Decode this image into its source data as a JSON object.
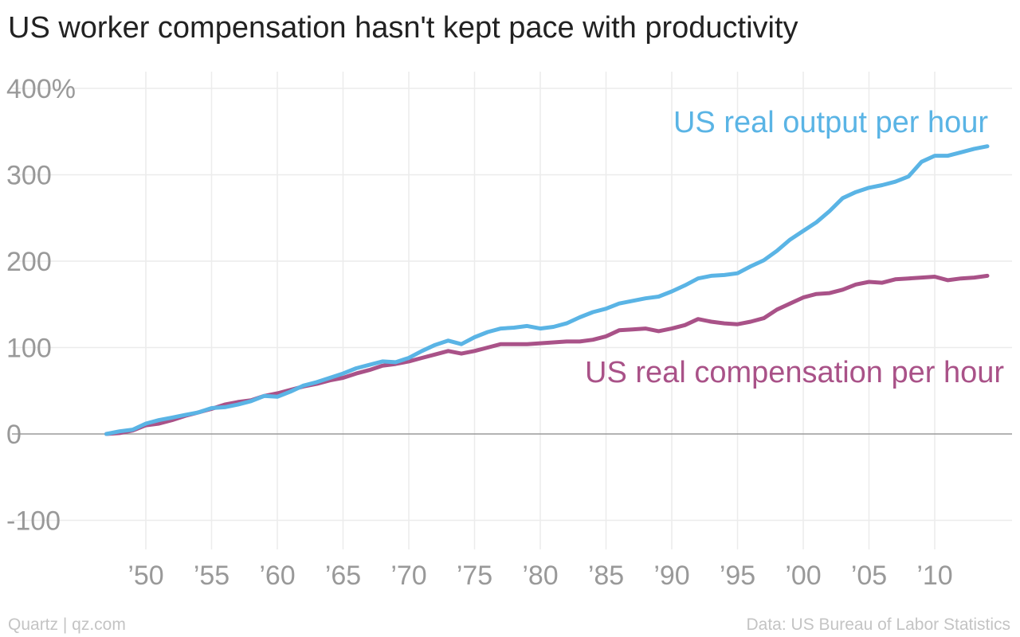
{
  "chart_data": {
    "type": "line",
    "title": "US worker compensation hasn't kept pace with productivity",
    "xlim": [
      1947,
      2014.5
    ],
    "ylim": [
      -125,
      410
    ],
    "y_ticks": [
      {
        "value": 400,
        "label": "400%"
      },
      {
        "value": 300,
        "label": "300"
      },
      {
        "value": 200,
        "label": "200"
      },
      {
        "value": 100,
        "label": "100"
      },
      {
        "value": 0,
        "label": "0"
      },
      {
        "value": -100,
        "label": "-100"
      }
    ],
    "x_ticks": [
      {
        "value": 1950,
        "label": "’50"
      },
      {
        "value": 1955,
        "label": "’55"
      },
      {
        "value": 1960,
        "label": "’60"
      },
      {
        "value": 1965,
        "label": "’65"
      },
      {
        "value": 1970,
        "label": "’70"
      },
      {
        "value": 1975,
        "label": "’75"
      },
      {
        "value": 1980,
        "label": "’80"
      },
      {
        "value": 1985,
        "label": "’85"
      },
      {
        "value": 1990,
        "label": "’90"
      },
      {
        "value": 1995,
        "label": "’95"
      },
      {
        "value": 2000,
        "label": "’00"
      },
      {
        "value": 2005,
        "label": "’05"
      },
      {
        "value": 2010,
        "label": "’10"
      }
    ],
    "grid": true,
    "series": [
      {
        "name": "US real output per hour",
        "color": "#5ab4e5",
        "x": [
          1947,
          1948,
          1949,
          1950,
          1951,
          1952,
          1953,
          1954,
          1955,
          1956,
          1957,
          1958,
          1959,
          1960,
          1961,
          1962,
          1963,
          1964,
          1965,
          1966,
          1967,
          1968,
          1969,
          1970,
          1971,
          1972,
          1973,
          1974,
          1975,
          1976,
          1977,
          1978,
          1979,
          1980,
          1981,
          1982,
          1983,
          1984,
          1985,
          1986,
          1987,
          1988,
          1989,
          1990,
          1991,
          1992,
          1993,
          1994,
          1995,
          1996,
          1997,
          1998,
          1999,
          2000,
          2001,
          2002,
          2003,
          2004,
          2005,
          2006,
          2007,
          2008,
          2009,
          2010,
          2011,
          2012,
          2013,
          2014
        ],
        "values": [
          0,
          3,
          5,
          12,
          16,
          19,
          22,
          25,
          30,
          31,
          34,
          38,
          44,
          43,
          49,
          56,
          60,
          65,
          70,
          76,
          80,
          84,
          83,
          88,
          96,
          103,
          108,
          104,
          112,
          118,
          122,
          123,
          125,
          122,
          124,
          128,
          135,
          141,
          145,
          151,
          154,
          157,
          159,
          165,
          172,
          180,
          183,
          184,
          186,
          194,
          201,
          212,
          225,
          235,
          245,
          258,
          273,
          280,
          285,
          288,
          292,
          298,
          315,
          322,
          322,
          326,
          330,
          333
        ]
      },
      {
        "name": "US real compensation per hour",
        "color": "#a95288",
        "x": [
          1947,
          1948,
          1949,
          1950,
          1951,
          1952,
          1953,
          1954,
          1955,
          1956,
          1957,
          1958,
          1959,
          1960,
          1961,
          1962,
          1963,
          1964,
          1965,
          1966,
          1967,
          1968,
          1969,
          1970,
          1971,
          1972,
          1973,
          1974,
          1975,
          1976,
          1977,
          1978,
          1979,
          1980,
          1981,
          1982,
          1983,
          1984,
          1985,
          1986,
          1987,
          1988,
          1989,
          1990,
          1991,
          1992,
          1993,
          1994,
          1995,
          1996,
          1997,
          1998,
          1999,
          2000,
          2001,
          2002,
          2003,
          2004,
          2005,
          2006,
          2007,
          2008,
          2009,
          2010,
          2011,
          2012,
          2013,
          2014
        ],
        "values": [
          0,
          1,
          4,
          10,
          12,
          16,
          21,
          25,
          29,
          34,
          37,
          39,
          44,
          47,
          51,
          55,
          58,
          62,
          65,
          70,
          74,
          79,
          81,
          84,
          88,
          92,
          96,
          93,
          96,
          100,
          104,
          104,
          104,
          105,
          106,
          107,
          107,
          109,
          113,
          120,
          121,
          122,
          119,
          122,
          126,
          133,
          130,
          128,
          127,
          130,
          134,
          144,
          151,
          158,
          162,
          163,
          167,
          173,
          176,
          175,
          179,
          180,
          181,
          182,
          178,
          180,
          181,
          183
        ]
      }
    ]
  },
  "footer": {
    "source_left": "Quartz | qz.com",
    "source_right": "Data: US Bureau of Labor Statistics"
  }
}
